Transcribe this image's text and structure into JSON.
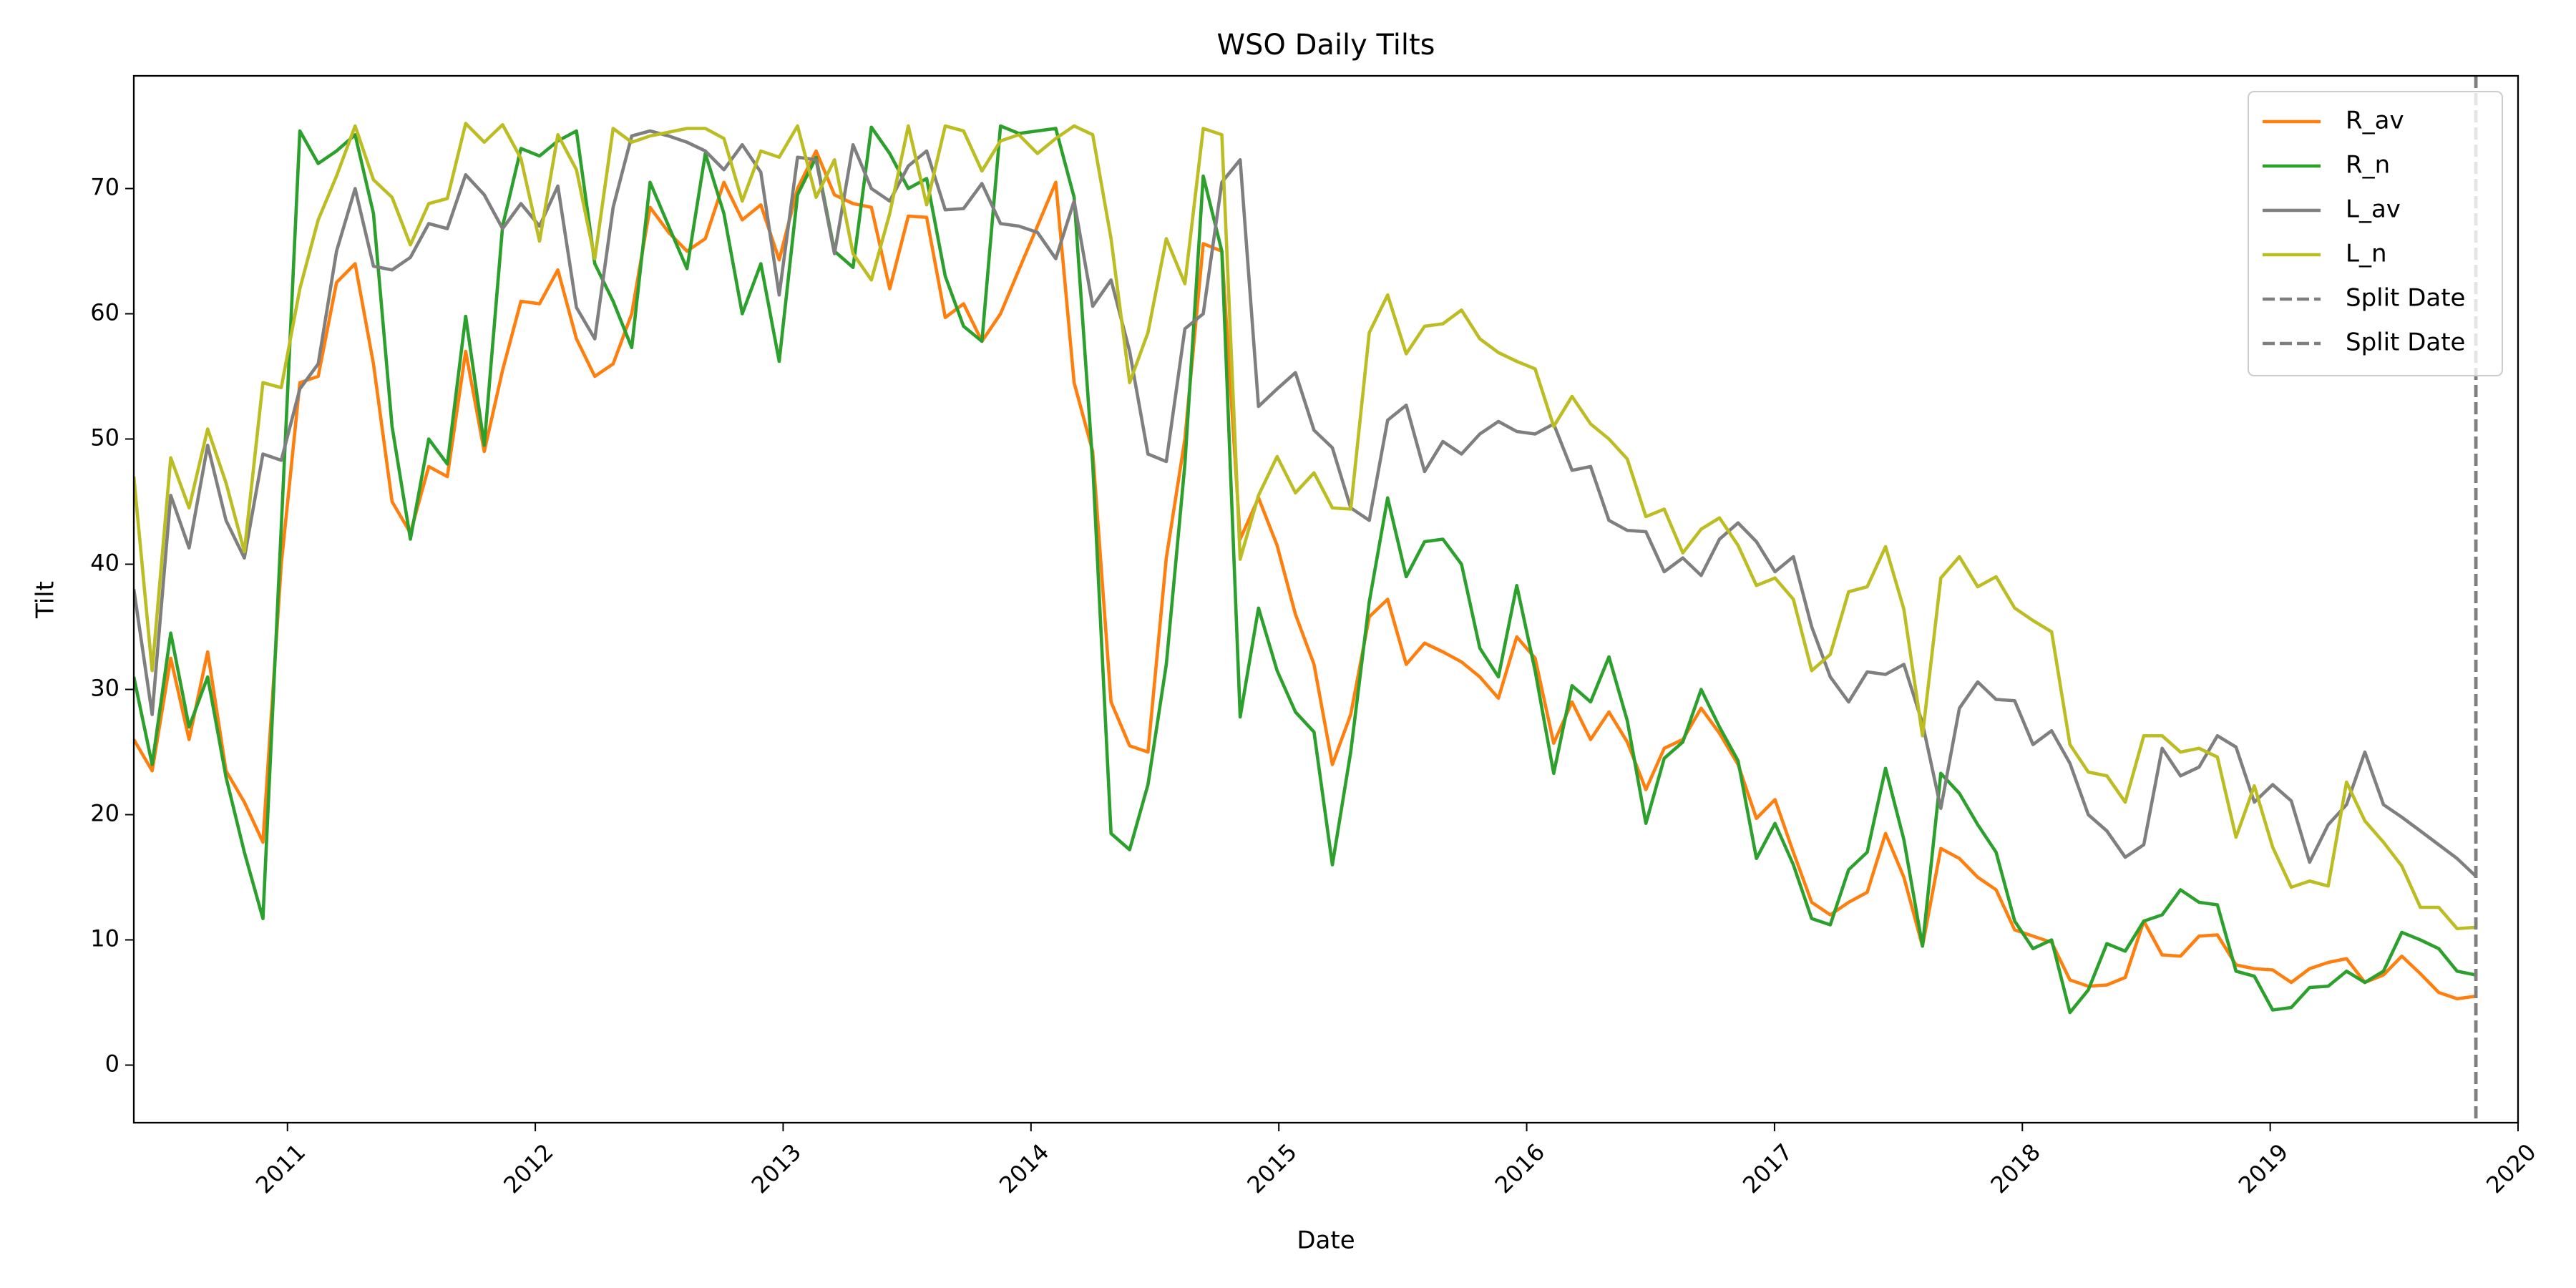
{
  "chart_data": {
    "type": "line",
    "title": "WSO Daily Tilts",
    "x_label": "Date",
    "y_label": "Tilt",
    "x": [
      2010.38,
      2010.454,
      2010.529,
      2010.603,
      2010.678,
      2010.752,
      2010.826,
      2010.901,
      2010.975,
      2011.05,
      2011.124,
      2011.198,
      2011.273,
      2011.347,
      2011.422,
      2011.496,
      2011.57,
      2011.645,
      2011.719,
      2011.794,
      2011.868,
      2011.942,
      2012.017,
      2012.091,
      2012.166,
      2012.24,
      2012.314,
      2012.389,
      2012.463,
      2012.538,
      2012.612,
      2012.686,
      2012.761,
      2012.835,
      2012.91,
      2012.984,
      2013.058,
      2013.133,
      2013.207,
      2013.282,
      2013.356,
      2013.43,
      2013.505,
      2013.579,
      2013.654,
      2013.728,
      2013.802,
      2013.877,
      2013.951,
      2014.026,
      2014.1,
      2014.174,
      2014.249,
      2014.323,
      2014.398,
      2014.472,
      2014.546,
      2014.621,
      2014.695,
      2014.77,
      2014.844,
      2014.918,
      2014.993,
      2015.067,
      2015.142,
      2015.216,
      2015.29,
      2015.365,
      2015.439,
      2015.514,
      2015.588,
      2015.662,
      2015.737,
      2015.811,
      2015.886,
      2015.96,
      2016.034,
      2016.109,
      2016.183,
      2016.258,
      2016.332,
      2016.406,
      2016.481,
      2016.555,
      2016.63,
      2016.704,
      2016.778,
      2016.853,
      2016.927,
      2017.002,
      2017.076,
      2017.15,
      2017.225,
      2017.299,
      2017.374,
      2017.448,
      2017.522,
      2017.597,
      2017.671,
      2017.746,
      2017.82,
      2017.894,
      2017.969,
      2018.043,
      2018.118,
      2018.192,
      2018.266,
      2018.341,
      2018.415,
      2018.49,
      2018.564,
      2018.638,
      2018.713,
      2018.787,
      2018.862,
      2018.936,
      2019.01,
      2019.085,
      2019.159,
      2019.234,
      2019.308,
      2019.382,
      2019.457,
      2019.531,
      2019.606,
      2019.68,
      2019.754,
      2019.829
    ],
    "series": [
      {
        "name": "R_av",
        "color": "#ff7f0e",
        "values": [
          26,
          23.5,
          32.5,
          26,
          33,
          23.5,
          21,
          17.8,
          40,
          54.5,
          55,
          62.5,
          64,
          56,
          45,
          42.5,
          47.8,
          47,
          57,
          49,
          55.5,
          61,
          60.8,
          63.5,
          58,
          55,
          56,
          60,
          68.5,
          66.5,
          65,
          66,
          70.5,
          67.5,
          68.7,
          64.3,
          70,
          73,
          69.5,
          68.8,
          68.5,
          62,
          67.8,
          67.7,
          59.7,
          60.8,
          57.8,
          60,
          63.5,
          67,
          70.5,
          54.5,
          49,
          29,
          25.5,
          25,
          40.5,
          50,
          65.6,
          65,
          42,
          45.3,
          41.5,
          36,
          32,
          24,
          28,
          35.8,
          37.2,
          32,
          33.7,
          33,
          32.2,
          31,
          29.3,
          34.2,
          32.5,
          25.7,
          29,
          26,
          28.2,
          25.8,
          22,
          25.3,
          26,
          28.5,
          26.5,
          24,
          19.7,
          21.2,
          17,
          13,
          12,
          13,
          13.8,
          18.5,
          15,
          9.5,
          17.3,
          16.5,
          15,
          14,
          10.8,
          10.3,
          9.8,
          6.8,
          6.3,
          6.4,
          7,
          11.5,
          8.8,
          8.7,
          10.3,
          10.4,
          8,
          7.7,
          7.6,
          6.6,
          7.7,
          8.2,
          8.5,
          6.6,
          7.2,
          8.7,
          7.3,
          5.8,
          5.3,
          5.5
        ]
      },
      {
        "name": "R_n",
        "color": "#2ca02c",
        "values": [
          31,
          24,
          34.5,
          27,
          31,
          23,
          17,
          11.7,
          43,
          74.6,
          72,
          73,
          74.3,
          68,
          51,
          42,
          50,
          48,
          59.8,
          49.5,
          67,
          73.2,
          72.6,
          73.8,
          74.6,
          64,
          61,
          57.3,
          70.5,
          67,
          63.6,
          72.8,
          68,
          60,
          64,
          56.2,
          69.5,
          72.5,
          65,
          63.7,
          74.9,
          72.8,
          70,
          70.8,
          63,
          59,
          57.8,
          75,
          74.4,
          74.6,
          74.8,
          69.3,
          48,
          18.5,
          17.2,
          22.4,
          32,
          48,
          71,
          65,
          27.8,
          36.5,
          31.5,
          28.2,
          26.6,
          16,
          25,
          37,
          45.3,
          39,
          41.8,
          42,
          40,
          33.3,
          31,
          38.3,
          31.5,
          23.3,
          30.3,
          29,
          32.6,
          27.5,
          19.3,
          24.5,
          25.8,
          30,
          27,
          24.3,
          16.5,
          19.3,
          16,
          11.7,
          11.2,
          15.6,
          17,
          23.7,
          18,
          9.5,
          23.3,
          21.7,
          19.2,
          17,
          11.5,
          9.3,
          10,
          4.2,
          6,
          9.7,
          9.1,
          11.5,
          12,
          14,
          13,
          12.8,
          7.5,
          7.1,
          4.4,
          4.6,
          6.2,
          6.3,
          7.5,
          6.6,
          7.5,
          10.6,
          10,
          9.3,
          7.5,
          7.2
        ]
      },
      {
        "name": "L_av",
        "color": "#7f7f7f",
        "values": [
          38,
          28,
          45.5,
          41.3,
          49.5,
          43.5,
          40.5,
          48.8,
          48.3,
          54,
          56,
          65,
          70,
          63.8,
          63.5,
          64.5,
          67.2,
          66.8,
          71.1,
          69.5,
          66.8,
          68.8,
          67,
          70.2,
          60.5,
          58,
          68.5,
          74.2,
          74.6,
          74.2,
          73.7,
          73,
          71.5,
          73.5,
          71.3,
          61.5,
          72.5,
          72.3,
          64.8,
          73.5,
          70,
          69,
          71.8,
          73,
          68.3,
          68.4,
          70.4,
          67.2,
          67,
          66.5,
          64.4,
          69,
          60.6,
          62.7,
          57,
          48.8,
          48.2,
          58.8,
          60,
          70.5,
          72.3,
          52.6,
          54,
          55.3,
          50.7,
          49.3,
          44.5,
          43.5,
          51.5,
          52.7,
          47.4,
          49.8,
          48.8,
          50.4,
          51.4,
          50.6,
          50.4,
          51.2,
          47.5,
          47.8,
          43.5,
          42.7,
          42.6,
          39.4,
          40.5,
          39.1,
          42,
          43.3,
          41.8,
          39.4,
          40.6,
          35,
          31,
          29,
          31.4,
          31.2,
          32,
          27.3,
          20.5,
          28.5,
          30.6,
          29.2,
          29.1,
          25.6,
          26.7,
          24.1,
          20,
          18.7,
          16.6,
          17.6,
          25.3,
          23.1,
          23.8,
          26.3,
          25.4,
          21,
          22.4,
          21.1,
          16.2,
          19.2,
          20.8,
          25,
          20.8,
          19.8,
          18.7,
          17.6,
          16.5,
          15.1
        ]
      },
      {
        "name": "L_n",
        "color": "#bcbd22",
        "values": [
          47,
          31.5,
          48.5,
          44.5,
          50.8,
          46.5,
          41,
          54.5,
          54.1,
          62,
          67.5,
          71,
          75,
          70.7,
          69.3,
          65.5,
          68.8,
          69.2,
          75.2,
          73.7,
          75.1,
          72.4,
          65.8,
          74.3,
          71.5,
          64.4,
          74.8,
          73.7,
          74.2,
          74.5,
          74.8,
          74.8,
          74,
          69,
          73,
          72.5,
          75,
          69.3,
          72.3,
          64.8,
          62.7,
          68,
          75,
          68.7,
          75,
          74.6,
          71.4,
          73.8,
          74.3,
          72.8,
          74,
          75,
          74.3,
          66,
          54.5,
          58.5,
          66,
          62.4,
          74.8,
          74.3,
          40.4,
          45.5,
          48.6,
          45.7,
          47.3,
          44.5,
          44.4,
          58.5,
          61.5,
          56.8,
          59,
          59.2,
          60.3,
          58,
          56.9,
          56.2,
          55.6,
          51,
          53.4,
          51.2,
          50,
          48.4,
          43.8,
          44.4,
          40.9,
          42.8,
          43.7,
          41.5,
          38.3,
          38.9,
          37.2,
          31.5,
          32.8,
          37.8,
          38.2,
          41.4,
          36.4,
          26.3,
          38.9,
          40.6,
          38.2,
          39,
          36.5,
          35.5,
          34.6,
          25.6,
          23.4,
          23.1,
          21,
          26.3,
          26.3,
          25,
          25.3,
          24.6,
          18.2,
          22.3,
          17.4,
          14.2,
          14.7,
          14.3,
          22.6,
          19.5,
          17.8,
          15.9,
          12.6,
          12.6,
          10.9,
          11
        ]
      }
    ],
    "vlines": [
      {
        "name": "Split Date",
        "x": 2019.83,
        "color": "#7f7f7f",
        "dashed": true
      },
      {
        "name": "Split Date",
        "x": 2019.83,
        "color": "#7f7f7f",
        "dashed": true
      }
    ],
    "xlim": [
      2010.38,
      2020.0
    ],
    "xticks": [
      2011,
      2012,
      2013,
      2014,
      2015,
      2016,
      2017,
      2018,
      2019,
      2020
    ],
    "ylim": [
      -4.6,
      79
    ],
    "yticks": [
      0,
      10,
      20,
      30,
      40,
      50,
      60,
      70
    ],
    "grid": false,
    "legend": "upper right"
  }
}
